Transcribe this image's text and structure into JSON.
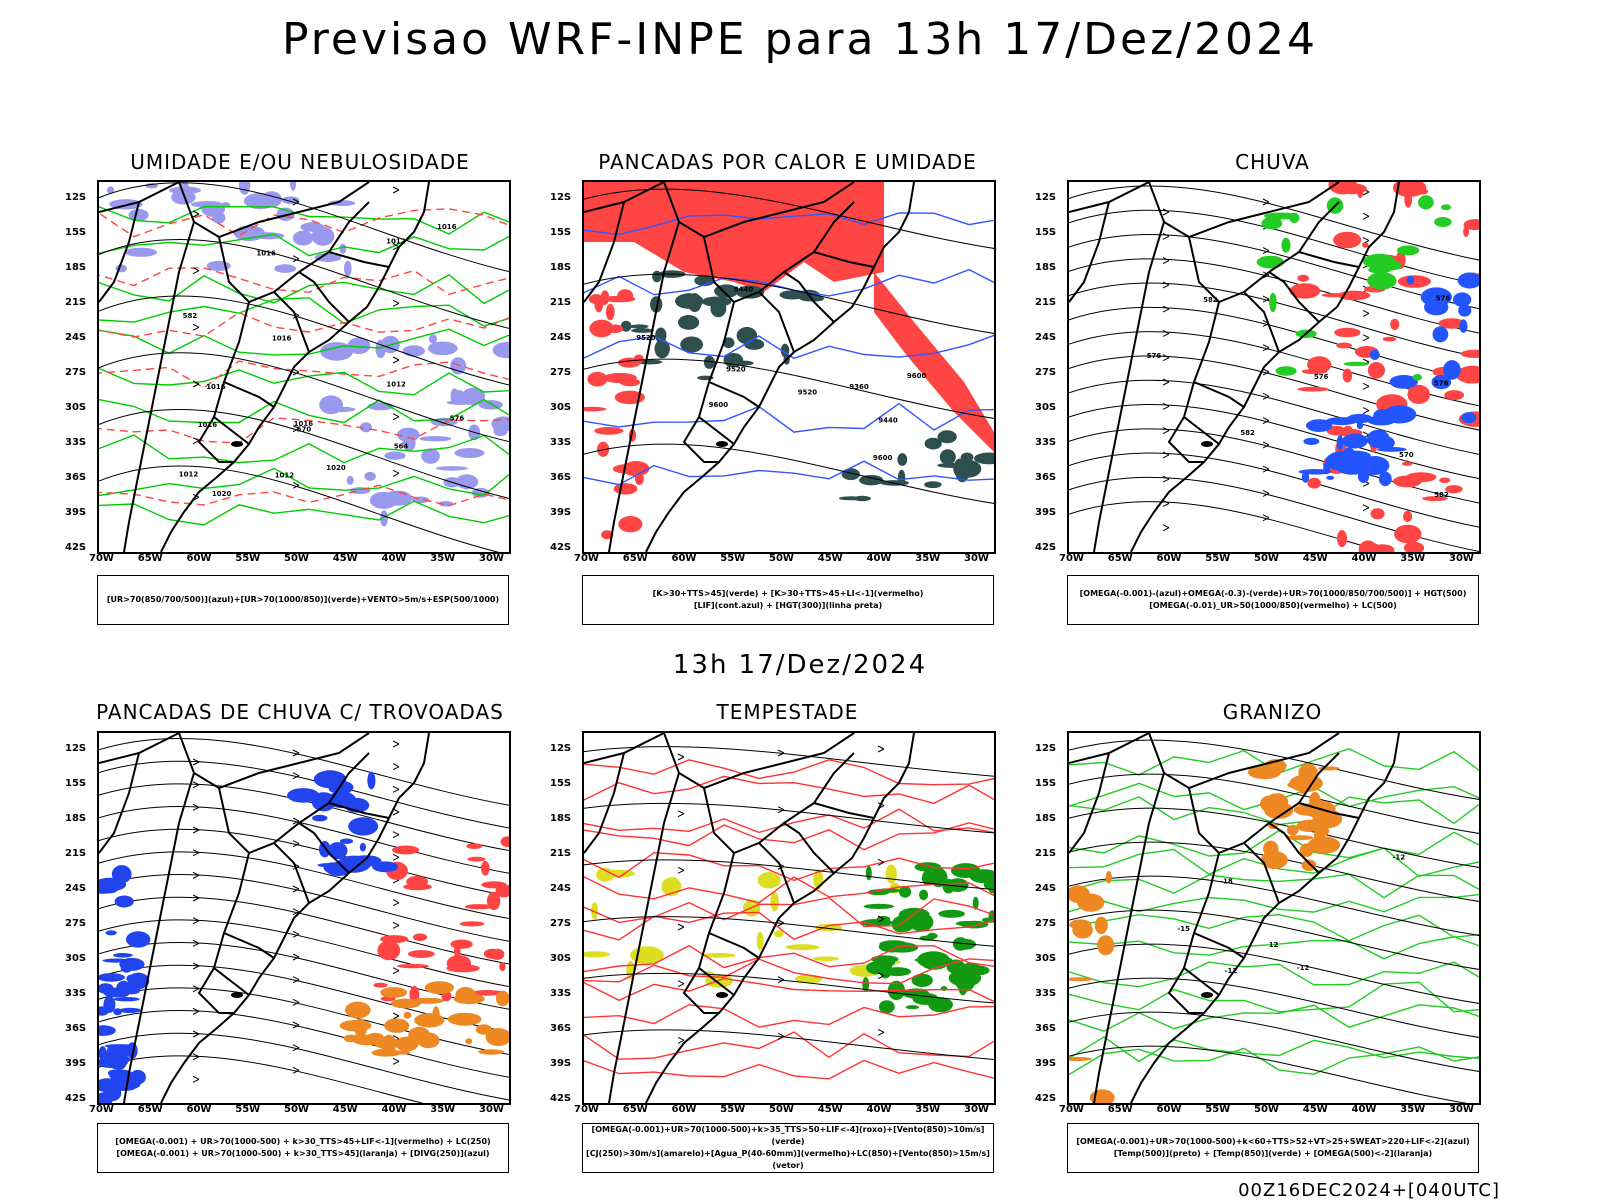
{
  "title": "Previsao WRF-INPE  para 13h 17/Dez/2024",
  "middle_title": "13h 17/Dez/2024",
  "footer": "00Z16DEC2024+[040UTC]",
  "lat_labels": [
    "12S",
    "15S",
    "18S",
    "21S",
    "24S",
    "27S",
    "30S",
    "33S",
    "36S",
    "39S",
    "42S"
  ],
  "lon_labels": [
    "70W",
    "65W",
    "60W",
    "55W",
    "50W",
    "45W",
    "40W",
    "35W",
    "30W"
  ],
  "panels": [
    {
      "title": "UMIDADE E/OU NEBULOSIDADE",
      "legend": [
        "[UR>70(850/700/500)](azul)+[UR>70(1000/850)](verde)+VENTO>5m/s+ESP(500/1000)"
      ],
      "colors": {
        "fill": "#9999ee",
        "line1": "#00cc00",
        "line2": "#ff4444"
      }
    },
    {
      "title": "PANCADAS POR CALOR E UMIDADE",
      "legend": [
        "[K>30+TTS>45](verde) + [K>30+TTS>45+LI<-1](vermelho)",
        "[LIF](cont.azul) + [HGT(300)](linha preta)"
      ],
      "colors": {
        "fill": "#ff4444",
        "fill2": "#2f4f4f",
        "line1": "#3355ff"
      }
    },
    {
      "title": "CHUVA",
      "legend": [
        "[OMEGA(-0.001)-(azul)+OMEGA(-0.3)-(verde)+UR>70(1000/850/700/500)] + HGT(500)",
        "[OMEGA(-0.01)_UR>50(1000/850)(vermelho) + LC(500)"
      ],
      "colors": {
        "fill": "#ff4444",
        "fill2": "#2255ff",
        "line1": "#22cc22"
      }
    },
    {
      "title": "PANCADAS DE CHUVA C/ TROVOADAS",
      "legend": [
        "[OMEGA(-0.001) + UR>70(1000-500) + k>30_TTS>45+LIF<-1](vermelho) + LC(250)",
        "[OMEGA(-0.001) + UR>70(1000-500) + k>30_TTS>45](laranja) + [DIVG(250)](azul)"
      ],
      "colors": {
        "fill": "#ff4444",
        "fill2": "#2244ee",
        "fill3": "#ee8822"
      }
    },
    {
      "title": "TEMPESTADE",
      "legend": [
        "[OMEGA(-0.001)+UR>70(1000-500)+k>35_TTS>50+LIF<-4](roxo)+[Vento(850)>10m/s](verde)",
        "[CJ(250)>30m/s](amarelo)+[Agua_P(40-60mm)](vermelho)+LC(850)+[Vento(850)>15m/s](vetor)"
      ],
      "colors": {
        "fill": "#dddd22",
        "fill2": "#119911",
        "line1": "#ff3333"
      }
    },
    {
      "title": "GRANIZO",
      "legend": [
        "[OMEGA(-0.001)+UR>70(1000-500)+k<60+TTS>52+VT>25+SWEAT>220+LIF<-2](azul)",
        "[Temp(500)](preto) + [Temp(850)](verde) + [OMEGA(500)<-2](laranja)"
      ],
      "colors": {
        "line1": "#22cc22",
        "fill": "#ee8822"
      }
    }
  ],
  "contour_labels": {
    "p1": [
      "1012",
      "1012",
      "1012",
      "1020",
      "1016",
      "1016",
      "1016",
      "1016",
      "1012",
      "1016",
      "1020",
      "1016",
      "570",
      "576",
      "582",
      "564"
    ],
    "p2": [
      "9600",
      "9600",
      "9520",
      "9520",
      "9600",
      "9520",
      "9440",
      "9440",
      "9360"
    ],
    "p3": [
      "576",
      "582",
      "570",
      "576",
      "582",
      "576",
      "582",
      "576"
    ],
    "p6": [
      "-12",
      "-12",
      "-18",
      "-15",
      "12",
      "-12"
    ]
  }
}
